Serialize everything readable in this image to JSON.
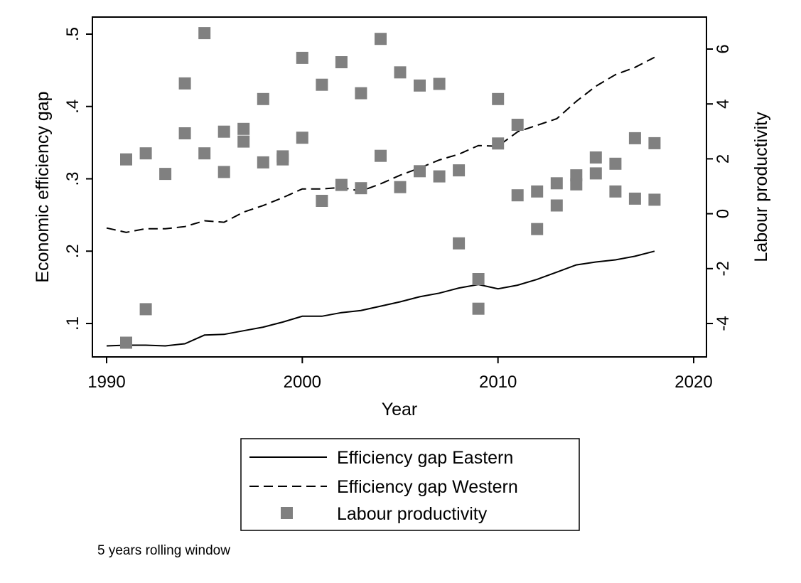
{
  "chart_data": {
    "type": "line",
    "title": "",
    "xlabel": "Year",
    "ylabel_left": "Economic efficiency gap",
    "ylabel_right": "Labour productivity",
    "xlim": [
      1990,
      2020
    ],
    "ylim_left": [
      0.05,
      0.52
    ],
    "ylim_right": [
      -5.0,
      7.0
    ],
    "x_ticks": [
      1990,
      2000,
      2010,
      2020
    ],
    "x_tick_labels": [
      "1990",
      "2000",
      "2010",
      "2020"
    ],
    "y_left_ticks": [
      0.1,
      0.2,
      0.3,
      0.4,
      0.5
    ],
    "y_left_tick_labels": [
      ".1",
      ".2",
      ".3",
      ".4",
      ".5"
    ],
    "y_right_ticks": [
      -4,
      -2,
      0,
      2,
      4,
      6
    ],
    "y_right_tick_labels": [
      "-4",
      "-2",
      "0",
      "2",
      "4",
      "6"
    ],
    "grid": false,
    "legend_position": "bottom-center",
    "series": [
      {
        "name": "Efficiency gap Eastern",
        "type": "line",
        "axis": "left",
        "style": "solid",
        "color": "#000000",
        "x": [
          1990,
          1991,
          1992,
          1993,
          1994,
          1995,
          1996,
          1997,
          1998,
          1999,
          2000,
          2001,
          2002,
          2003,
          2004,
          2005,
          2006,
          2007,
          2008,
          2009,
          2010,
          2011,
          2012,
          2013,
          2014,
          2015,
          2016,
          2017,
          2018
        ],
        "values": [
          0.069,
          0.07,
          0.07,
          0.069,
          0.072,
          0.084,
          0.085,
          0.09,
          0.095,
          0.102,
          0.11,
          0.11,
          0.115,
          0.118,
          0.124,
          0.13,
          0.137,
          0.142,
          0.149,
          0.154,
          0.148,
          0.153,
          0.161,
          0.171,
          0.181,
          0.185,
          0.188,
          0.193,
          0.2
        ]
      },
      {
        "name": "Efficiency gap Western",
        "type": "line",
        "axis": "left",
        "style": "dashed",
        "color": "#000000",
        "x": [
          1990,
          1991,
          1992,
          1993,
          1994,
          1995,
          1996,
          1997,
          1998,
          1999,
          2000,
          2001,
          2002,
          2003,
          2004,
          2005,
          2006,
          2007,
          2008,
          2009,
          2010,
          2011,
          2012,
          2013,
          2014,
          2015,
          2016,
          2017,
          2018
        ],
        "values": [
          0.232,
          0.226,
          0.231,
          0.231,
          0.234,
          0.242,
          0.24,
          0.254,
          0.263,
          0.274,
          0.286,
          0.286,
          0.288,
          0.283,
          0.293,
          0.305,
          0.315,
          0.326,
          0.334,
          0.346,
          0.345,
          0.365,
          0.374,
          0.383,
          0.407,
          0.428,
          0.444,
          0.454,
          0.468
        ]
      },
      {
        "name": "Labour productivity",
        "type": "scatter",
        "axis": "right",
        "marker": "square",
        "color": "#808080",
        "x": [
          1991,
          1991,
          1992,
          1992,
          1993,
          1994,
          1994,
          1995,
          1995,
          1996,
          1996,
          1997,
          1997,
          1998,
          1998,
          1999,
          1999,
          2000,
          2000,
          2001,
          2001,
          2002,
          2002,
          2003,
          2003,
          2004,
          2004,
          2005,
          2005,
          2006,
          2006,
          2007,
          2007,
          2008,
          2008,
          2009,
          2009,
          2010,
          2010,
          2011,
          2011,
          2012,
          2012,
          2013,
          2013,
          2014,
          2014,
          2015,
          2015,
          2016,
          2016,
          2017,
          2017,
          2018,
          2018
        ],
        "values": [
          1.98,
          -4.7,
          2.2,
          -3.48,
          1.45,
          2.93,
          4.75,
          2.2,
          6.58,
          1.52,
          2.99,
          2.63,
          3.09,
          1.87,
          4.18,
          1.98,
          2.09,
          2.77,
          5.68,
          0.47,
          4.7,
          1.05,
          5.52,
          0.93,
          4.39,
          2.11,
          6.37,
          0.97,
          5.15,
          1.55,
          4.67,
          1.36,
          4.73,
          1.58,
          -1.08,
          -2.38,
          -3.46,
          2.56,
          4.18,
          0.67,
          3.24,
          -0.56,
          0.81,
          1.11,
          0.3,
          1.4,
          1.07,
          2.05,
          1.47,
          1.82,
          0.81,
          2.75,
          0.55,
          2.57,
          0.51
        ]
      }
    ],
    "note": "5 years rolling window"
  }
}
